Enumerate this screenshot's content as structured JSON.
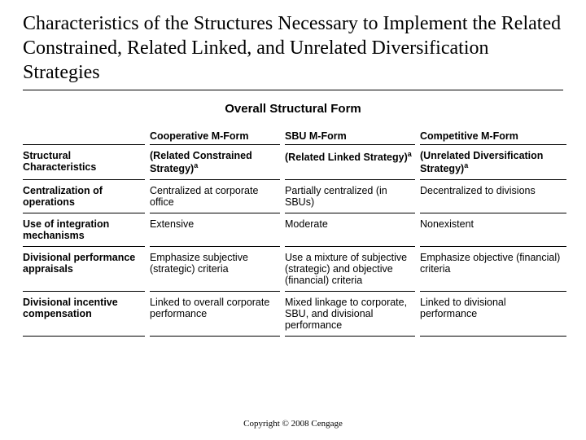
{
  "title": "Characteristics of the Structures Necessary to Implement the Related Constrained, Related Linked, and Unrelated Diversification Strategies",
  "subtitle": "Overall Structural Form",
  "columns": {
    "blank": "",
    "c1": "Cooperative M-Form",
    "c2": "SBU M-Form",
    "c3": "Competitive M-Form"
  },
  "rows": {
    "r0": {
      "label": "Structural Characteristics",
      "c1": "(Related Constrained Strategy)",
      "c1_sup": "a",
      "c2": "(Related Linked Strategy)",
      "c2_sup": "a",
      "c3": "(Unrelated Diversification Strategy)",
      "c3_sup": "a"
    },
    "r1": {
      "label": "Centralization of operations",
      "c1": "Centralized at corporate office",
      "c2": "Partially centralized (in SBUs)",
      "c3": "Decentralized to divisions"
    },
    "r2": {
      "label": "Use of integration mechanisms",
      "c1": "Extensive",
      "c2": "Moderate",
      "c3": "Nonexistent"
    },
    "r3": {
      "label": "Divisional performance appraisals",
      "c1": "Emphasize subjective (strategic) criteria",
      "c2": "Use a mixture of subjective (strategic) and objective (financial) criteria",
      "c3": "Emphasize objective (financial) criteria"
    },
    "r4": {
      "label": "Divisional incentive compensation",
      "c1": "Linked to overall corporate performance",
      "c2": "Mixed linkage to corporate, SBU, and divisional performance",
      "c3": "Linked to divisional performance"
    }
  },
  "footer": "Copyright © 2008 Cengage"
}
